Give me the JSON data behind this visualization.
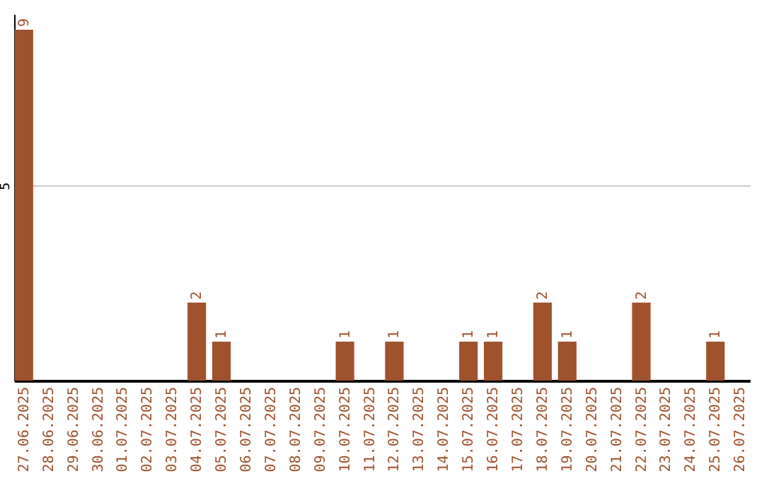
{
  "chart_data": {
    "type": "bar",
    "categories": [
      "27.06.2025",
      "28.06.2025",
      "29.06.2025",
      "30.06.2025",
      "01.07.2025",
      "02.07.2025",
      "03.07.2025",
      "04.07.2025",
      "05.07.2025",
      "06.07.2025",
      "07.07.2025",
      "08.07.2025",
      "09.07.2025",
      "10.07.2025",
      "11.07.2025",
      "12.07.2025",
      "13.07.2025",
      "14.07.2025",
      "15.07.2025",
      "16.07.2025",
      "17.07.2025",
      "18.07.2025",
      "19.07.2025",
      "20.07.2025",
      "21.07.2025",
      "22.07.2025",
      "23.07.2025",
      "24.07.2025",
      "25.07.2025",
      "26.07.2025"
    ],
    "values": [
      9,
      0,
      0,
      0,
      0,
      0,
      0,
      2,
      1,
      0,
      0,
      0,
      0,
      1,
      0,
      1,
      0,
      0,
      1,
      1,
      0,
      2,
      1,
      0,
      0,
      2,
      0,
      0,
      1,
      0
    ],
    "value_labels": [
      "9",
      null,
      null,
      null,
      null,
      null,
      null,
      "2",
      "1",
      null,
      null,
      null,
      null,
      "1",
      null,
      "1",
      null,
      null,
      "1",
      "1",
      null,
      "2",
      "1",
      null,
      null,
      "2",
      null,
      null,
      "1",
      null
    ],
    "color": "#a0522d",
    "ylim": [
      0,
      9.4
    ],
    "yticks": [
      {
        "value": 0,
        "label": null
      },
      5
    ],
    "grid": "y"
  }
}
